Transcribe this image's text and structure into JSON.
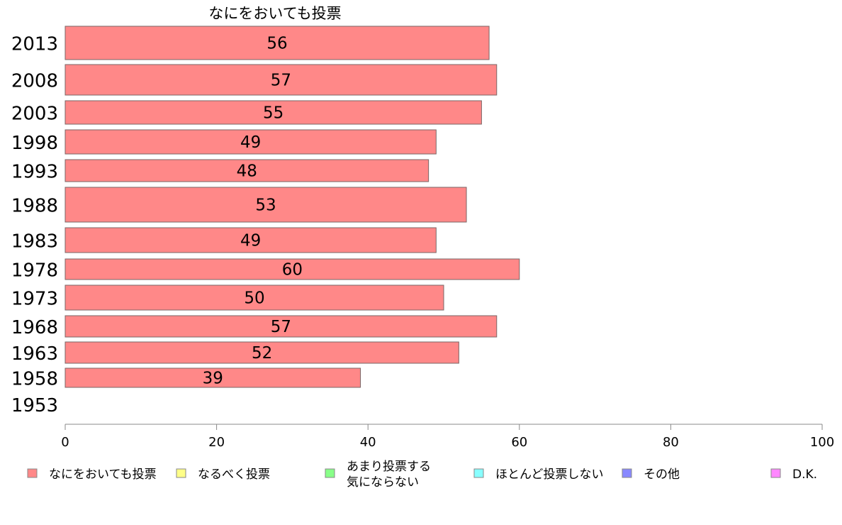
{
  "chart_data": {
    "type": "bar",
    "orientation": "horizontal",
    "title": "なにをおいても投票",
    "categories": [
      "2013",
      "2008",
      "2003",
      "1998",
      "1993",
      "1988",
      "1983",
      "1978",
      "1973",
      "1968",
      "1963",
      "1958",
      "1953"
    ],
    "series": [
      {
        "name": "なにをおいても投票",
        "values": [
          56,
          57,
          55,
          49,
          48,
          53,
          49,
          60,
          50,
          57,
          52,
          39,
          null
        ],
        "color": "#ff8888"
      }
    ],
    "data_labels": [
      "56",
      "57",
      "55",
      "49",
      "48",
      "53",
      "49",
      "60",
      "50",
      "57",
      "52",
      "39",
      ""
    ],
    "xlim": [
      0,
      100
    ],
    "x_ticks": [
      0,
      20,
      40,
      60,
      80,
      100
    ],
    "grid": false,
    "legend": {
      "placement": "bottom",
      "entries": [
        {
          "label": "なにをおいても投票",
          "color": "#ff8888"
        },
        {
          "label": "なるべく投票",
          "color": "#ffff88"
        },
        {
          "label": "あまり投票する\n気にならない",
          "color": "#88ff88"
        },
        {
          "label": "ほとんど投票しない",
          "color": "#88ffff"
        },
        {
          "label": "その他",
          "color": "#8888ff"
        },
        {
          "label": "D.K.",
          "color": "#ff88ff"
        }
      ]
    }
  }
}
